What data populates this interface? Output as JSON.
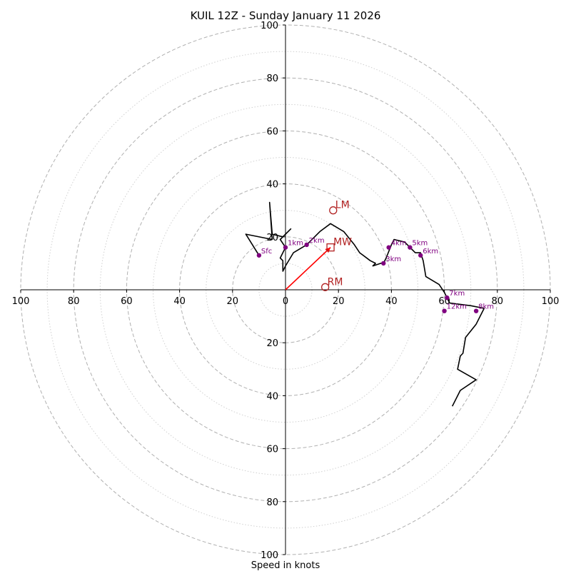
{
  "chart_data": {
    "type": "hodograph",
    "title": "KUIL 12Z - Sunday January 11 2026",
    "xlabel": "Speed in knots",
    "xlim": [
      -100,
      100
    ],
    "ylim": [
      -100,
      100
    ],
    "major_ticks": [
      20,
      40,
      60,
      80,
      100
    ],
    "x_tick_labels": [
      "100",
      "80",
      "60",
      "40",
      "20",
      "0",
      "20",
      "40",
      "60",
      "80",
      "100"
    ],
    "y_tick_labels_top": [
      "20",
      "40",
      "60",
      "80",
      "100"
    ],
    "y_tick_labels_bottom": [
      "20",
      "40",
      "60",
      "80",
      "100"
    ],
    "ring_major_style": "dashed",
    "ring_minor_style": "dotted",
    "colors": {
      "trace": "#000000",
      "height_marker": "#800080",
      "storm_motion": "#b22222",
      "mean_wind_vector": "#ff0000",
      "ring_major": "#b0b0b0",
      "ring_minor": "#d0d0d0"
    },
    "hodograph_trace": [
      [
        -10,
        13
      ],
      [
        -15,
        21
      ],
      [
        -5,
        19
      ],
      [
        -6,
        33
      ],
      [
        -5,
        21
      ],
      [
        -1,
        20
      ],
      [
        1,
        22
      ],
      [
        2,
        23
      ],
      [
        -2,
        19
      ],
      [
        0,
        16
      ],
      [
        -2,
        12
      ],
      [
        -1,
        11
      ],
      [
        -1,
        7
      ],
      [
        0,
        9
      ],
      [
        3,
        14
      ],
      [
        8,
        17
      ],
      [
        13,
        22
      ],
      [
        17,
        25
      ],
      [
        22,
        22
      ],
      [
        26,
        17
      ],
      [
        28,
        14
      ],
      [
        32,
        11
      ],
      [
        34,
        10
      ],
      [
        33,
        9
      ],
      [
        36,
        10
      ],
      [
        37,
        10
      ],
      [
        38,
        12
      ],
      [
        40,
        17
      ],
      [
        41,
        19
      ],
      [
        45,
        18
      ],
      [
        47,
        16
      ],
      [
        49,
        14
      ],
      [
        51,
        14
      ],
      [
        52,
        11
      ],
      [
        53,
        5
      ],
      [
        58,
        2
      ],
      [
        60,
        -1
      ],
      [
        61,
        -3
      ],
      [
        62,
        -5
      ],
      [
        70,
        -6
      ],
      [
        75,
        -7
      ],
      [
        72,
        -13
      ],
      [
        68,
        -18
      ],
      [
        67,
        -24
      ],
      [
        66,
        -25
      ],
      [
        65,
        -30
      ],
      [
        72,
        -34
      ],
      [
        66,
        -38
      ],
      [
        63,
        -44
      ]
    ],
    "height_markers": [
      {
        "label": "Sfc",
        "u": -10,
        "v": 13
      },
      {
        "label": "1km",
        "u": 0,
        "v": 16
      },
      {
        "label": "2km",
        "u": 8,
        "v": 17
      },
      {
        "label": "3km",
        "u": 37,
        "v": 10
      },
      {
        "label": "4km",
        "u": 39,
        "v": 16
      },
      {
        "label": "5km",
        "u": 47,
        "v": 16
      },
      {
        "label": "6km",
        "u": 51,
        "v": 13
      },
      {
        "label": "7km",
        "u": 61,
        "v": -3
      },
      {
        "label": "8km",
        "u": 72,
        "v": -8
      },
      {
        "label": "12km",
        "u": 60,
        "v": -8
      }
    ],
    "storm_motion": [
      {
        "label": "LM",
        "u": 18,
        "v": 30
      },
      {
        "label": "RM",
        "u": 15,
        "v": 1
      }
    ],
    "mean_wind": {
      "label": "MW",
      "u": 17,
      "v": 16
    }
  }
}
